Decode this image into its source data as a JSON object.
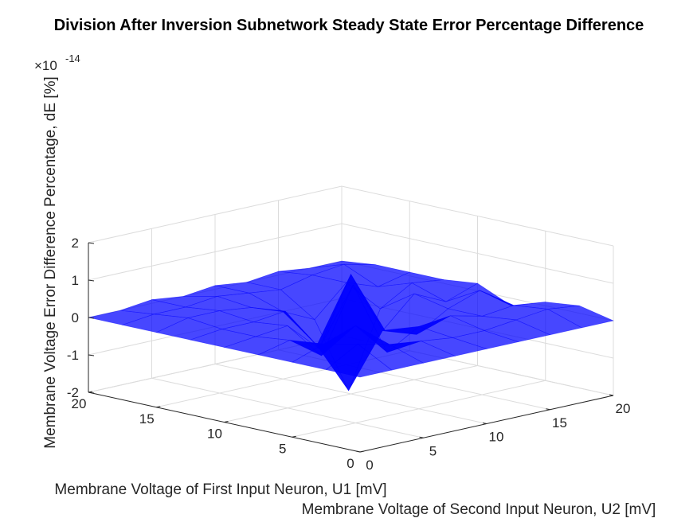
{
  "chart_data": {
    "type": "surface",
    "title": "Division After Inversion Subnetwork Steady State Error Percentage Difference",
    "xlabel": "Membrane Voltage of First Input Neuron, U1 [mV]",
    "ylabel": "Membrane Voltage of Second Input Neuron, U2 [mV]",
    "zlabel": "Membrane Voltage Error Difference Percentage, dE [%]",
    "z_exponent_label": "×10",
    "z_exponent_power": "-14",
    "xlim": [
      0,
      20
    ],
    "ylim": [
      0,
      20
    ],
    "zlim": [
      -2,
      2
    ],
    "x_ticks": [
      "0",
      "5",
      "10",
      "15",
      "20"
    ],
    "y_ticks": [
      "0",
      "5",
      "10",
      "15",
      "20"
    ],
    "z_ticks": [
      "2",
      "1",
      "0",
      "-1",
      "-2"
    ],
    "z_tick_values": [
      2,
      1,
      0,
      -1,
      -2
    ],
    "z_unit_scale": 1e-14,
    "surface_color": "#0000ff",
    "grid": true,
    "grid_x": [
      0,
      2.5,
      5,
      7.5,
      10,
      12.5,
      15,
      17.5,
      20
    ],
    "grid_y": [
      0,
      2.5,
      5,
      7.5,
      10,
      12.5,
      15,
      17.5,
      20
    ],
    "z_values": [
      [
        0,
        0,
        0,
        0,
        0,
        0,
        0,
        0,
        0
      ],
      [
        0,
        0.5,
        0.3,
        0.2,
        0.1,
        0.1,
        0.2,
        0.3,
        0.2
      ],
      [
        0,
        0.3,
        0.6,
        -0.3,
        0.2,
        0.3,
        0.1,
        0.2,
        0.1
      ],
      [
        0,
        0.2,
        -0.4,
        1.3,
        -0.1,
        -0.4,
        0.1,
        0.4,
        -0.2
      ],
      [
        0,
        0.1,
        0.2,
        -0.6,
        1.2,
        -0.5,
        0.3,
        -0.1,
        0.2
      ],
      [
        0,
        0.1,
        0.1,
        0.2,
        -0.9,
        -2.3,
        -0.3,
        0.2,
        0.1
      ],
      [
        0,
        0.2,
        0.2,
        0.1,
        -0.2,
        -0.6,
        0.2,
        -0.1,
        0.1
      ],
      [
        0,
        0.1,
        0.1,
        0.2,
        0.1,
        0.0,
        0.2,
        0.3,
        0.1
      ],
      [
        0,
        0,
        0.1,
        0,
        0.1,
        0,
        0.1,
        0,
        0
      ]
    ]
  }
}
